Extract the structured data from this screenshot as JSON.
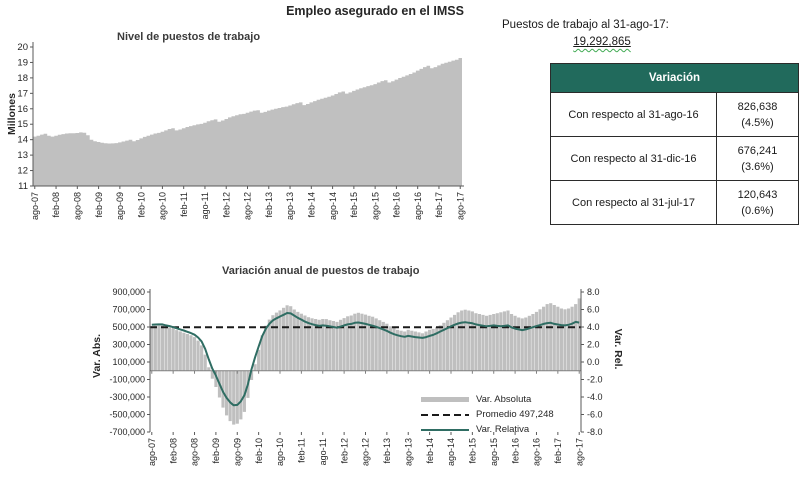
{
  "page": {
    "title": "Empleo asegurado en el IMSS"
  },
  "summary": {
    "heading": "Puestos de trabajo al 31-ago-17:",
    "headline_value": "19,292,865"
  },
  "table": {
    "header": "Variación",
    "rows": [
      {
        "label": "Con respecto al 31-ago-16",
        "value": "826,638",
        "pct": "(4.5%)"
      },
      {
        "label": "Con respecto al 31-dic-16",
        "value": "676,241",
        "pct": "(3.6%)"
      },
      {
        "label": "Con respecto al 31-jul-17",
        "value": "120,643",
        "pct": "(0.6%)"
      }
    ]
  },
  "colors": {
    "bar": "#bfbfbf",
    "area": "#c0c0c0",
    "line": "#2f6d63",
    "dash": "#1a1a1a",
    "axis": "#595959",
    "zero_axis": "#808080",
    "table_header": "#216a5c"
  },
  "chart_data": [
    {
      "type": "area",
      "title": "Nivel de puestos de trabajo",
      "ylabel": "Millones",
      "ylim": [
        11,
        20
      ],
      "y_ticks": [
        20,
        19,
        18,
        17,
        16,
        15,
        14,
        13,
        12,
        11
      ],
      "x_tick_every": 6,
      "x_tick_labels": [
        "ago-07",
        "feb-08",
        "ago-08",
        "feb-09",
        "ago-09",
        "feb-10",
        "ago-10",
        "feb-11",
        "ago-11",
        "feb-12",
        "ago-12",
        "feb-13",
        "ago-13",
        "feb-14",
        "ago-14",
        "feb-15",
        "ago-15",
        "feb-16",
        "ago-16",
        "feb-17",
        "ago-17"
      ],
      "values": [
        14.2,
        14.26,
        14.33,
        14.38,
        14.25,
        14.2,
        14.26,
        14.32,
        14.36,
        14.4,
        14.42,
        14.42,
        14.43,
        14.47,
        14.45,
        14.28,
        14.0,
        13.9,
        13.85,
        13.8,
        13.77,
        13.75,
        13.76,
        13.78,
        13.82,
        13.88,
        13.94,
        14.0,
        13.9,
        13.98,
        14.08,
        14.18,
        14.26,
        14.33,
        14.4,
        14.44,
        14.51,
        14.6,
        14.69,
        14.74,
        14.6,
        14.66,
        14.74,
        14.82,
        14.88,
        14.93,
        14.99,
        15.02,
        15.1,
        15.19,
        15.26,
        15.31,
        15.16,
        15.24,
        15.34,
        15.44,
        15.51,
        15.58,
        15.65,
        15.67,
        15.74,
        15.82,
        15.88,
        15.91,
        15.74,
        15.8,
        15.88,
        15.95,
        16.0,
        16.05,
        16.11,
        16.14,
        16.21,
        16.29,
        16.37,
        16.41,
        16.24,
        16.31,
        16.41,
        16.5,
        16.58,
        16.65,
        16.72,
        16.78,
        16.86,
        16.96,
        17.06,
        17.12,
        16.98,
        17.06,
        17.16,
        17.25,
        17.33,
        17.4,
        17.47,
        17.52,
        17.6,
        17.7,
        17.79,
        17.85,
        17.7,
        17.78,
        17.89,
        17.99,
        18.08,
        18.16,
        18.25,
        18.35,
        18.47,
        18.58,
        18.7,
        18.78,
        18.62,
        18.7,
        18.81,
        18.91,
        18.98,
        19.05,
        19.12,
        19.17,
        19.29
      ]
    },
    {
      "type": "combo",
      "title": "Variación anual de puestos de trabajo",
      "ylabel_left": "Var. Abs.",
      "ylabel_right": "Var. Rel.",
      "ylim_left": [
        -700000,
        900000
      ],
      "ylim_right": [
        -8,
        8
      ],
      "left_ticks": [
        900000,
        700000,
        500000,
        300000,
        100000,
        -100000,
        -300000,
        -500000,
        -700000
      ],
      "right_ticks": [
        8,
        6,
        4,
        2,
        0,
        -2,
        -4,
        -6,
        -8
      ],
      "x_tick_every": 6,
      "x_tick_labels": [
        "ago-07",
        "feb-08",
        "ago-08",
        "feb-09",
        "ago-09",
        "feb-10",
        "ago-10",
        "feb-11",
        "ago-11",
        "feb-12",
        "ago-12",
        "feb-13",
        "ago-13",
        "feb-14",
        "ago-14",
        "feb-15",
        "ago-15",
        "feb-16",
        "ago-16",
        "feb-17",
        "ago-17"
      ],
      "legend": [
        "Var. Absoluta",
        "Promedio 497,248",
        "Var. Relativa"
      ],
      "promedio": 497248,
      "series": [
        {
          "name": "Var. Absoluta",
          "type": "bar",
          "axis": "left",
          "values": [
            510000,
            515000,
            520000,
            522000,
            505000,
            495000,
            480000,
            465000,
            450000,
            435000,
            420000,
            405000,
            385000,
            345000,
            290000,
            185000,
            40000,
            -90000,
            -185000,
            -305000,
            -420000,
            -510000,
            -575000,
            -615000,
            -605000,
            -555000,
            -470000,
            -310000,
            -105000,
            75000,
            240000,
            405000,
            515000,
            585000,
            635000,
            665000,
            690000,
            720000,
            748000,
            738000,
            700000,
            672000,
            652000,
            632000,
            612000,
            600000,
            592000,
            582000,
            592000,
            590000,
            578000,
            568000,
            558000,
            582000,
            602000,
            622000,
            632000,
            652000,
            662000,
            652000,
            642000,
            628000,
            618000,
            598000,
            578000,
            558000,
            538000,
            508000,
            488000,
            468000,
            458000,
            448000,
            468000,
            458000,
            448000,
            438000,
            428000,
            448000,
            468000,
            478000,
            498000,
            518000,
            548000,
            578000,
            608000,
            638000,
            668000,
            688000,
            698000,
            688000,
            678000,
            658000,
            648000,
            638000,
            628000,
            638000,
            648000,
            658000,
            668000,
            678000,
            688000,
            648000,
            628000,
            608000,
            598000,
            608000,
            628000,
            648000,
            672000,
            702000,
            732000,
            762000,
            772000,
            752000,
            732000,
            712000,
            702000,
            712000,
            732000,
            762000,
            826638
          ]
        },
        {
          "name": "Promedio 497,248",
          "type": "const-dashed",
          "axis": "left",
          "value": 497248
        },
        {
          "name": "Var. Relativa",
          "type": "line",
          "axis": "right",
          "values": [
            4.25,
            4.28,
            4.3,
            4.3,
            4.18,
            4.1,
            3.98,
            3.85,
            3.72,
            3.6,
            3.45,
            3.3,
            3.12,
            2.8,
            2.35,
            1.5,
            0.3,
            -0.75,
            -1.55,
            -2.5,
            -3.4,
            -4.1,
            -4.6,
            -4.95,
            -4.9,
            -4.5,
            -3.8,
            -2.5,
            -0.85,
            0.55,
            1.75,
            2.95,
            3.8,
            4.35,
            4.75,
            5.0,
            5.2,
            5.4,
            5.6,
            5.55,
            5.3,
            5.05,
            4.85,
            4.62,
            4.45,
            4.32,
            4.22,
            4.12,
            4.18,
            4.15,
            4.08,
            4.0,
            3.92,
            4.05,
            4.18,
            4.3,
            4.35,
            4.48,
            4.52,
            4.45,
            4.35,
            4.25,
            4.15,
            4.02,
            3.88,
            3.72,
            3.55,
            3.35,
            3.18,
            3.05,
            2.95,
            2.88,
            2.98,
            2.92,
            2.85,
            2.8,
            2.75,
            2.85,
            2.98,
            3.1,
            3.28,
            3.48,
            3.68,
            3.88,
            4.08,
            4.25,
            4.4,
            4.5,
            4.55,
            4.48,
            4.42,
            4.3,
            4.22,
            4.15,
            4.08,
            4.12,
            4.18,
            4.12,
            4.08,
            4.12,
            4.18,
            3.95,
            3.82,
            3.72,
            3.65,
            3.72,
            3.85,
            3.98,
            4.1,
            4.22,
            4.35,
            4.45,
            4.48,
            4.35,
            4.28,
            4.22,
            4.18,
            4.25,
            4.38,
            4.58,
            4.5
          ]
        }
      ]
    }
  ]
}
